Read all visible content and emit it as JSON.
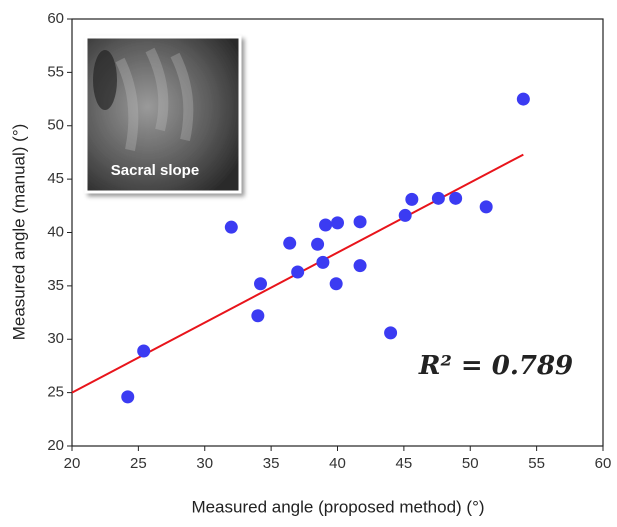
{
  "chart_data": {
    "type": "scatter",
    "xlabel": "Measured angle (proposed method) (°)",
    "ylabel": "Measured angle (manual) (°)",
    "x": [
      24.2,
      25.4,
      32,
      34,
      34.2,
      36.4,
      37,
      38.5,
      38.9,
      39.1,
      39.9,
      40,
      41.7,
      41.7,
      44,
      45.1,
      45.6,
      47.6,
      48.9,
      51.2,
      54
    ],
    "values": [
      24.6,
      28.9,
      40.5,
      32.2,
      35.2,
      39,
      36.3,
      38.9,
      37.2,
      40.7,
      35.2,
      40.9,
      41,
      36.9,
      30.6,
      41.6,
      43.1,
      43.2,
      43.2,
      42.4,
      52.5
    ],
    "color": "#3b3bf2",
    "trendline": {
      "x": [
        20,
        54
      ],
      "values": [
        25,
        47.3
      ],
      "color": "#e8141b"
    },
    "annotation": "R² = 0.789",
    "inset_label": "Sacral slope",
    "xlim": [
      20,
      60
    ],
    "xticks": [
      20,
      25,
      30,
      35,
      40,
      45,
      50,
      55,
      60
    ],
    "ylim": [
      20,
      60
    ],
    "yticks": [
      20,
      25,
      30,
      35,
      40,
      45,
      50,
      55,
      60
    ]
  }
}
